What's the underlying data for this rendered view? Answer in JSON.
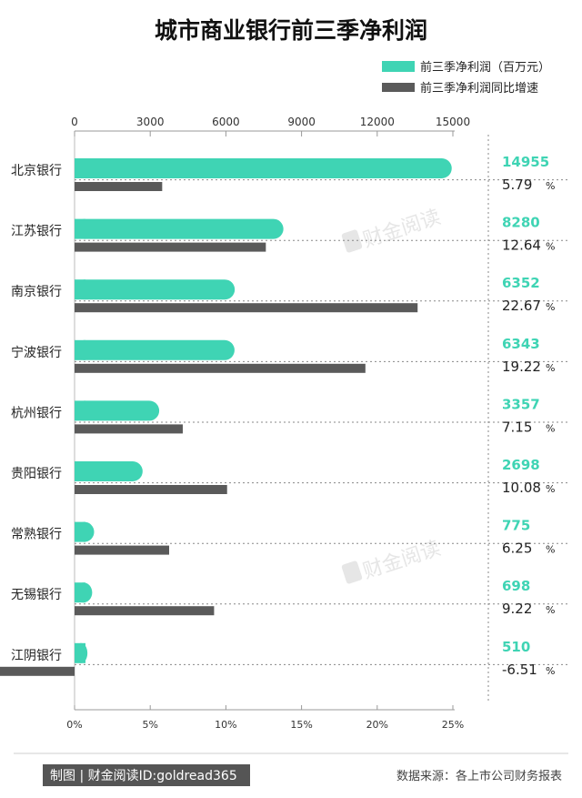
{
  "chart_data": {
    "type": "bar",
    "title": "城市商业银行前三季净利润",
    "categories": [
      "北京银行",
      "江苏银行",
      "南京银行",
      "宁波银行",
      "杭州银行",
      "贵阳银行",
      "常熟银行",
      "无锡银行",
      "江阴银行"
    ],
    "series": [
      {
        "name": "前三季净利润（百万元）",
        "values": [
          14955,
          8280,
          6352,
          6343,
          3357,
          2698,
          775,
          698,
          510
        ],
        "color": "#3fd4b4",
        "axis": "top"
      },
      {
        "name": "前三季净利润同比增速",
        "values": [
          5.79,
          12.64,
          22.67,
          19.22,
          7.15,
          10.08,
          6.25,
          9.22,
          -6.51
        ],
        "color": "#5a5a5a",
        "axis": "bottom"
      }
    ],
    "profit_labels": [
      "14955",
      "8280",
      "6352",
      "6343",
      "3357",
      "2698",
      "775",
      "698",
      "510"
    ],
    "growth_labels": [
      "5.79",
      "12.64",
      "22.67",
      "19.22",
      "7.15",
      "10.08",
      "6.25",
      "9.22",
      "-6.51"
    ],
    "percent_sign": "%",
    "top_axis": {
      "range": [
        0,
        15000
      ],
      "ticks": [
        "0",
        "3000",
        "6000",
        "9000",
        "12000",
        "15000"
      ]
    },
    "bottom_axis": {
      "range": [
        0,
        25
      ],
      "ticks": [
        "0%",
        "5%",
        "10%",
        "15%",
        "20%",
        "25%"
      ]
    },
    "orientation": "horizontal",
    "legend_position": "top-right"
  },
  "footer": {
    "credit": "制图 | 财金阅读ID:goldread365",
    "source": "数据来源：各上市公司财务报表"
  },
  "watermark": "财金阅读",
  "colors": {
    "profit": "#3fd4b4",
    "growth": "#5a5a5a"
  }
}
